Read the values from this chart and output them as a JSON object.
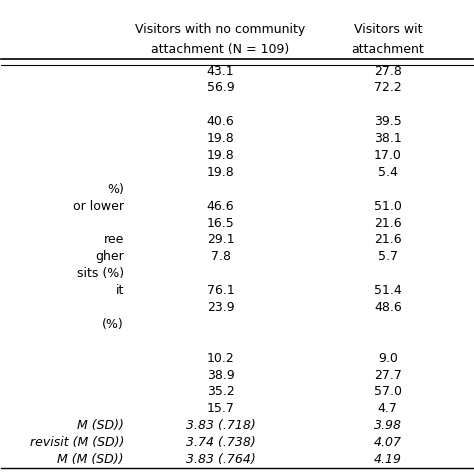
{
  "col1_header_line1": "Visitors with no community",
  "col1_header_line2": "attachment (N = 109)",
  "col2_header_line1": "Visitors wit",
  "col2_header_line2": "attachment",
  "rows": [
    {
      "left_label": "",
      "col1": "43.1",
      "col2": "27.8"
    },
    {
      "left_label": "",
      "col1": "56.9",
      "col2": "72.2"
    },
    {
      "left_label": "",
      "col1": "",
      "col2": ""
    },
    {
      "left_label": "",
      "col1": "40.6",
      "col2": "39.5"
    },
    {
      "left_label": "",
      "col1": "19.8",
      "col2": "38.1"
    },
    {
      "left_label": "",
      "col1": "19.8",
      "col2": "17.0"
    },
    {
      "left_label": "",
      "col1": "19.8",
      "col2": "5.4"
    },
    {
      "left_label": "%)",
      "col1": "",
      "col2": ""
    },
    {
      "left_label": "or lower",
      "col1": "46.6",
      "col2": "51.0"
    },
    {
      "left_label": "",
      "col1": "16.5",
      "col2": "21.6"
    },
    {
      "left_label": "ree",
      "col1": "29.1",
      "col2": "21.6"
    },
    {
      "left_label": "gher",
      "col1": "7.8",
      "col2": "5.7"
    },
    {
      "left_label": "sits (%)",
      "col1": "",
      "col2": ""
    },
    {
      "left_label": "it",
      "col1": "76.1",
      "col2": "51.4"
    },
    {
      "left_label": "",
      "col1": "23.9",
      "col2": "48.6"
    },
    {
      "left_label": "(%)",
      "col1": "",
      "col2": ""
    },
    {
      "left_label": "",
      "col1": "",
      "col2": ""
    },
    {
      "left_label": "",
      "col1": "10.2",
      "col2": "9.0"
    },
    {
      "left_label": "",
      "col1": "38.9",
      "col2": "27.7"
    },
    {
      "left_label": "",
      "col1": "35.2",
      "col2": "57.0"
    },
    {
      "left_label": "",
      "col1": "15.7",
      "col2": "4.7"
    },
    {
      "left_label": "M (SD))",
      "col1": "3.83 (.718)",
      "col2": "3.98"
    },
    {
      "left_label": "revisit (M (SD))",
      "col1": "3.74 (.738)",
      "col2": "4.07"
    },
    {
      "left_label": "M (M (SD))",
      "col1": "3.83 (.764)",
      "col2": "4.19"
    }
  ],
  "italic_rows": [
    21,
    22,
    23
  ],
  "background_color": "#ffffff",
  "text_color": "#000000",
  "font_size": 9.0,
  "header_font_size": 9.0
}
